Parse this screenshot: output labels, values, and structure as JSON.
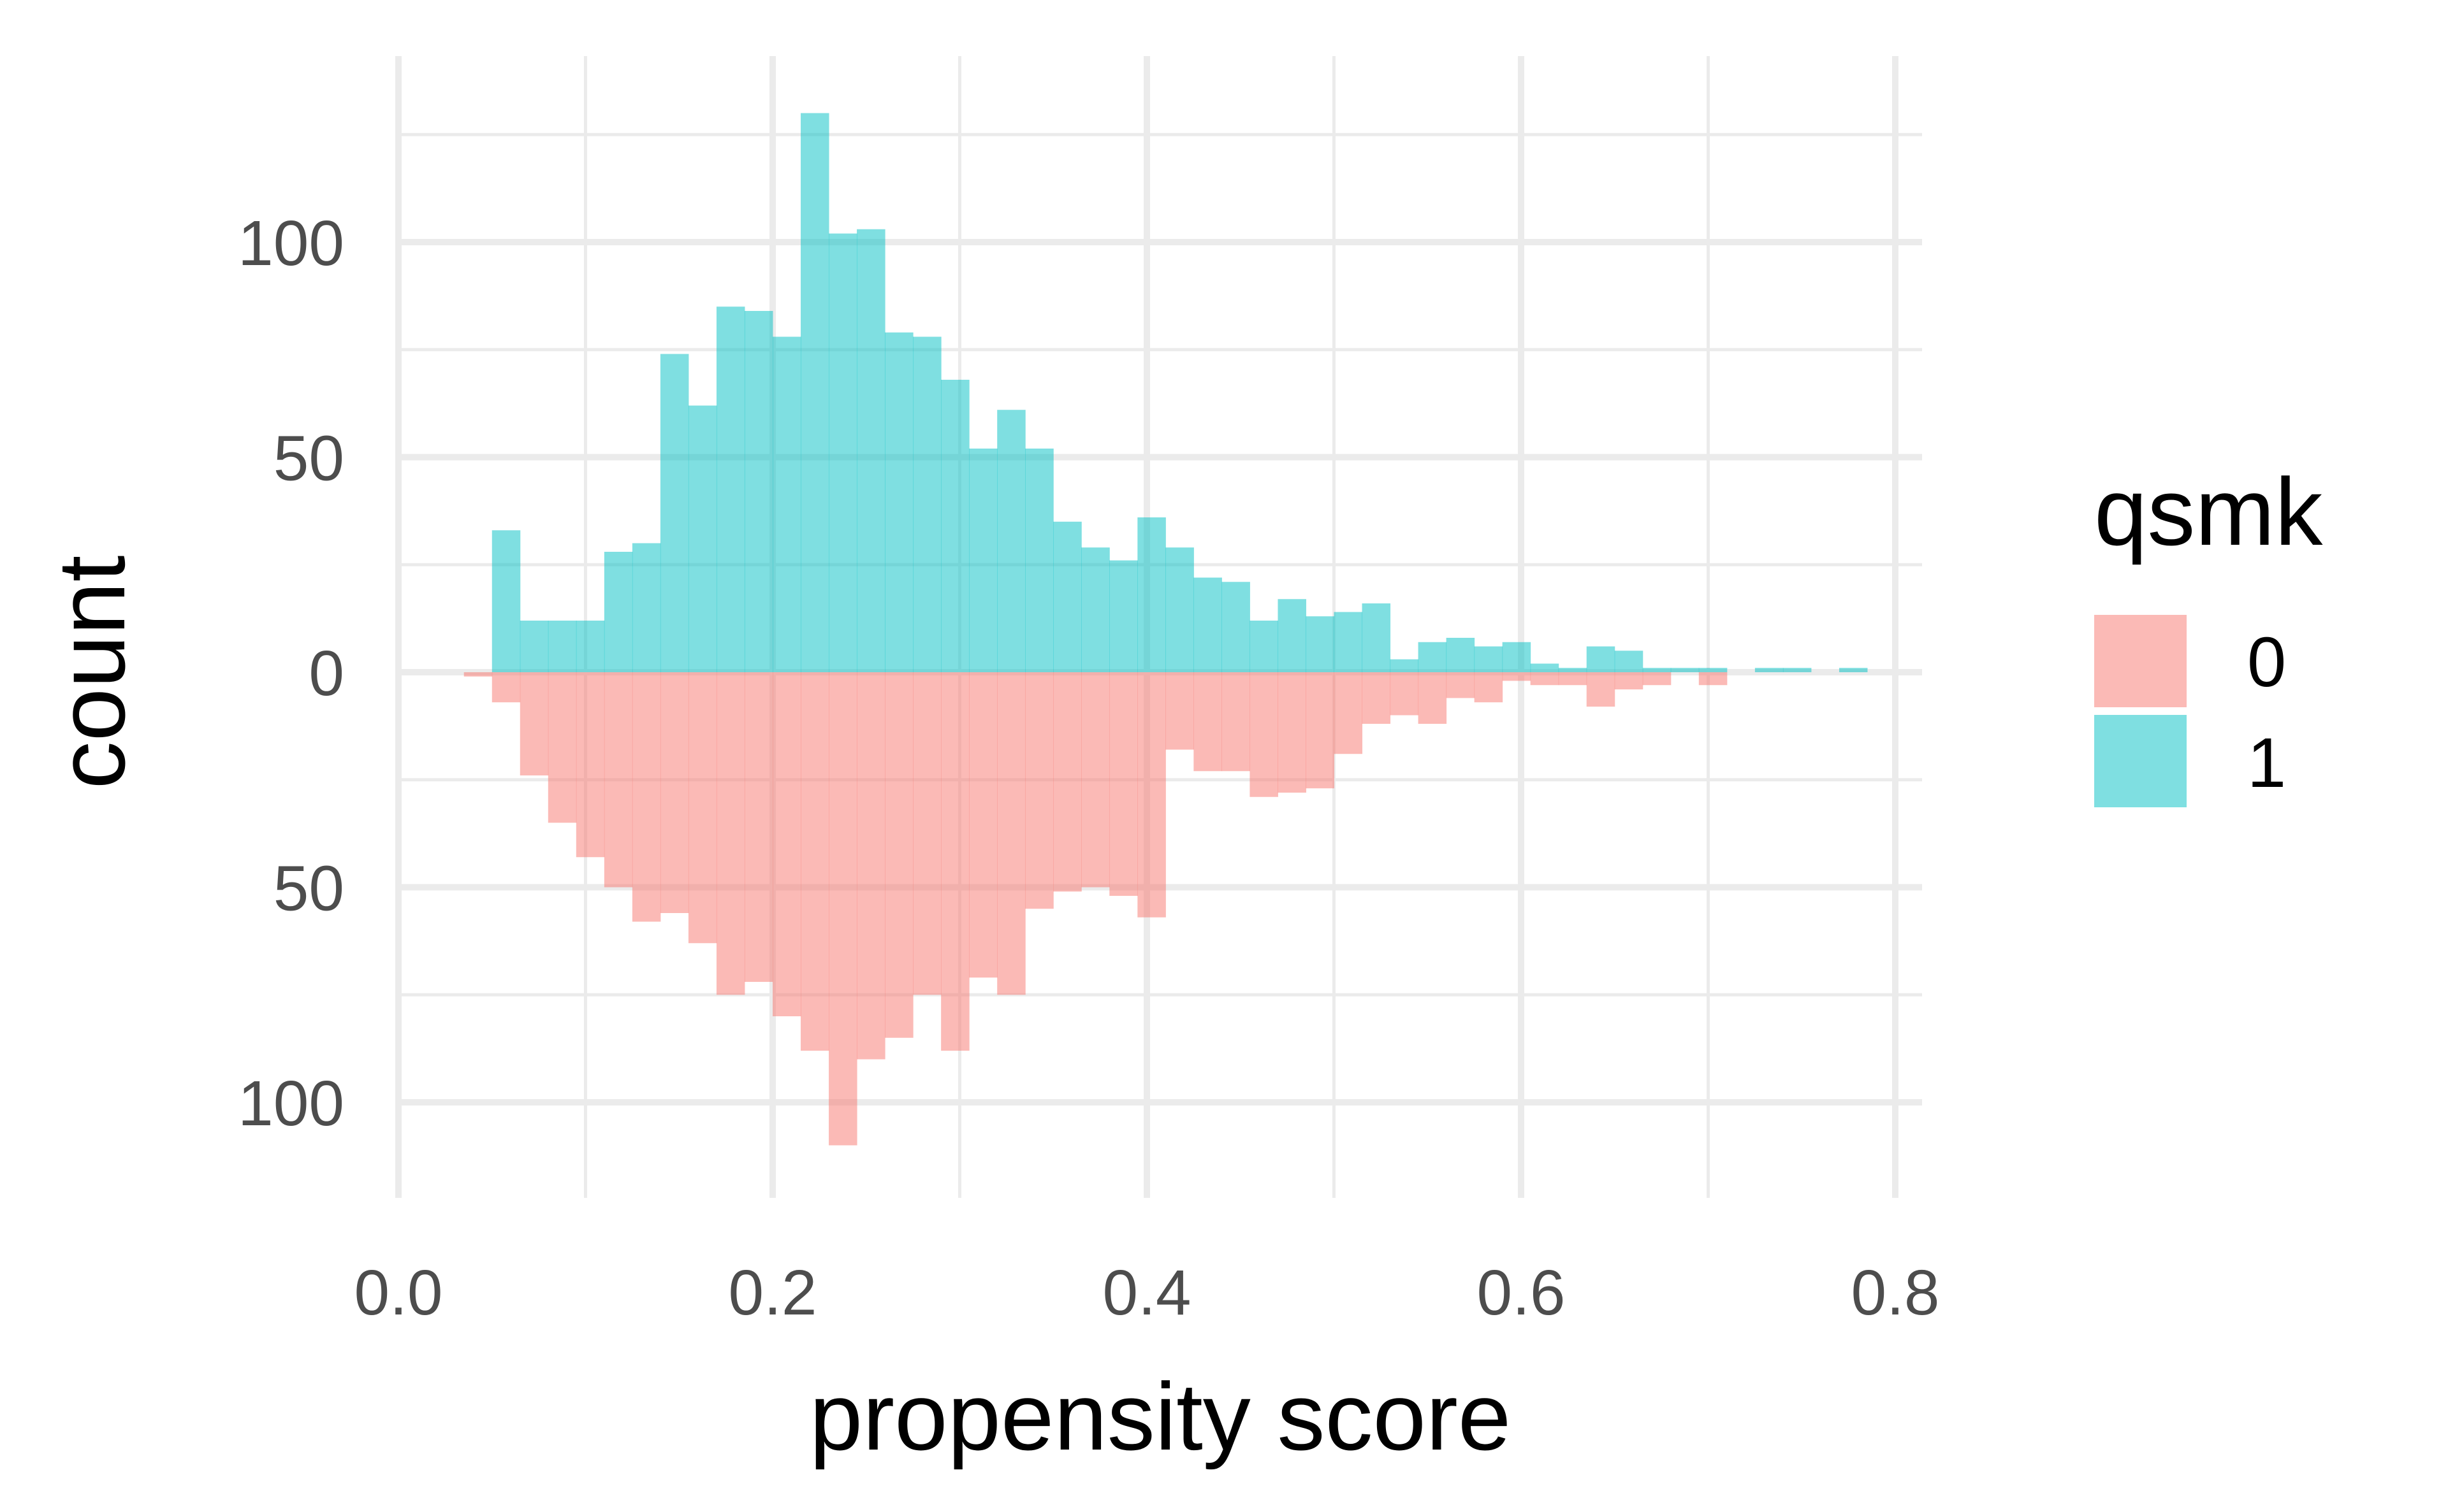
{
  "chart_data": {
    "type": "bar",
    "subtype": "mirrored-histogram",
    "title": "",
    "xlabel": "propensity score",
    "ylabel": "count",
    "xlim": [
      0.0,
      0.8
    ],
    "ylim": [
      -110,
      130
    ],
    "x_ticks": [
      0.0,
      0.2,
      0.4,
      0.6,
      0.8
    ],
    "x_tick_labels": [
      "0.0",
      "0.2",
      "0.4",
      "0.6",
      "0.8"
    ],
    "y_ticks": [
      100,
      50,
      0,
      -50,
      -100
    ],
    "y_tick_labels": [
      "100",
      "50",
      "0",
      "50",
      "100"
    ],
    "grid": true,
    "legend": {
      "title": "qsmk",
      "placement": "right",
      "entries": [
        {
          "label": "0",
          "color": "#f8766d"
        },
        {
          "label": "1",
          "color": "#00bfc4"
        }
      ]
    },
    "bin_width": 0.015,
    "bin_starts": [
      0.035,
      0.05,
      0.065,
      0.08,
      0.095,
      0.11,
      0.125,
      0.14,
      0.155,
      0.17,
      0.185,
      0.2,
      0.215,
      0.23,
      0.245,
      0.26,
      0.275,
      0.29,
      0.305,
      0.32,
      0.335,
      0.35,
      0.365,
      0.38,
      0.395,
      0.41,
      0.425,
      0.44,
      0.455,
      0.47,
      0.485,
      0.5,
      0.515,
      0.53,
      0.545,
      0.56,
      0.575,
      0.59,
      0.605,
      0.62,
      0.635,
      0.65,
      0.665,
      0.68,
      0.695,
      0.71,
      0.725,
      0.74,
      0.755,
      0.77
    ],
    "series": [
      {
        "name": "0",
        "direction": "down",
        "color": "#f8766d",
        "values": [
          1,
          7,
          24,
          35,
          43,
          50,
          58,
          56,
          63,
          75,
          72,
          80,
          88,
          110,
          90,
          85,
          75,
          88,
          71,
          75,
          55,
          51,
          50,
          52,
          57,
          18,
          23,
          23,
          29,
          28,
          27,
          19,
          12,
          10,
          12,
          6,
          7,
          2,
          3,
          3,
          8,
          4,
          3,
          0,
          3,
          0,
          0,
          0,
          0,
          0
        ]
      },
      {
        "name": "1",
        "direction": "up",
        "color": "#00bfc4",
        "values": [
          0,
          33,
          12,
          12,
          12,
          28,
          30,
          74,
          62,
          85,
          84,
          78,
          130,
          102,
          103,
          79,
          78,
          68,
          52,
          61,
          52,
          35,
          29,
          26,
          36,
          29,
          22,
          21,
          12,
          17,
          13,
          14,
          16,
          3,
          7,
          8,
          6,
          7,
          2,
          1,
          6,
          5,
          1,
          1,
          1,
          0,
          1,
          1,
          0,
          1
        ]
      }
    ]
  }
}
